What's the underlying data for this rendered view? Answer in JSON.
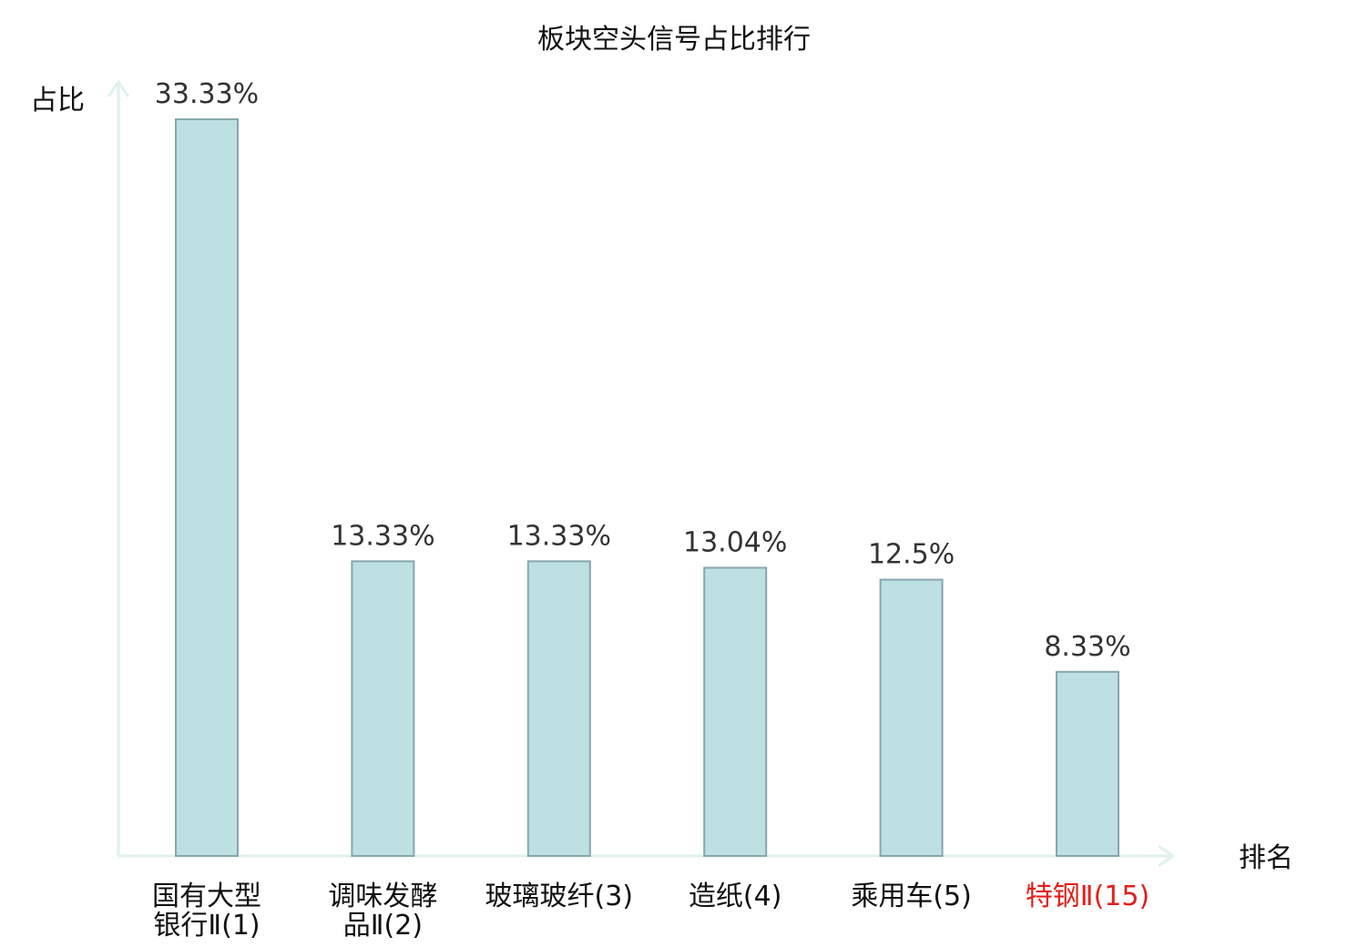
{
  "chart_data": {
    "type": "bar",
    "title": "板块空头信号占比排行",
    "xlabel": "排名",
    "ylabel": "占比",
    "categories": [
      [
        "国有大型",
        "银行Ⅱ(1)"
      ],
      [
        "调味发酵",
        "品Ⅱ(2)"
      ],
      [
        "玻璃玻纤(3)"
      ],
      [
        "造纸(4)"
      ],
      [
        "乘用车(5)"
      ],
      [
        "特钢Ⅱ(15)"
      ]
    ],
    "series": [
      {
        "values": [
          33.33,
          13.33,
          13.33,
          13.04,
          12.5,
          8.33
        ]
      }
    ],
    "value_labels": [
      "33.33%",
      "13.33%",
      "13.33%",
      "13.04%",
      "12.5%",
      "8.33%"
    ],
    "highlight_index": 5,
    "ylim": [
      0,
      33.33
    ],
    "grid": false,
    "legend": "none"
  },
  "colors": {
    "bar_fill": "#bde0e3",
    "bar_stroke": "#86a7aa",
    "axis": "#dff1ee",
    "text": "#111111",
    "value_text": "#333333",
    "highlight": "#e0201b"
  }
}
